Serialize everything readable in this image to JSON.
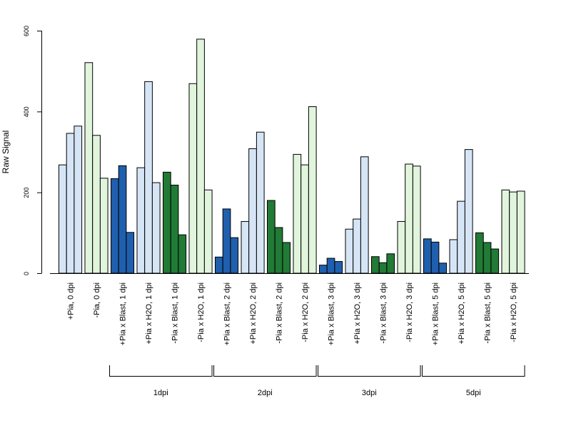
{
  "chart_data": {
    "type": "bar",
    "ylabel": "Raw Signal",
    "ylim": [
      0,
      600
    ],
    "yticks": [
      0,
      200,
      400,
      600
    ],
    "grid": false,
    "legend": "none",
    "colors": {
      "light_blue": "#d6e5f6",
      "light_green": "#e1f5dc",
      "dark_blue": "#1f5fae",
      "dark_green": "#217a35",
      "outline": "#000000"
    },
    "categories": [
      "+Pia, 0 dpi",
      "-Pia, 0 dpi",
      "+Pia x Blast, 1 dpi",
      "+Pia x H2O, 1 dpi",
      "-Pia x Blast, 1 dpi",
      "-Pia x H2O, 1 dpi",
      "+Pia x Blast, 2 dpi",
      "+Pia x H2O, 2 dpi",
      "-Pia x Blast, 2 dpi",
      "-Pia x H2O, 2 dpi",
      "+Pia x Blast, 3 dpi",
      "+Pia x H2O, 3 dpi",
      "-Pia x Blast, 3 dpi",
      "-Pia x H2O, 3 dpi",
      "+Pia x Blast, 5 dpi",
      "+Pia x H2O, 5 dpi",
      "-Pia x Blast, 5 dpi",
      "-Pia x H2O, 5 dpi"
    ],
    "group_colors": [
      "light_blue",
      "light_green",
      "dark_blue",
      "light_blue",
      "dark_green",
      "light_green",
      "dark_blue",
      "light_blue",
      "dark_green",
      "light_green",
      "dark_blue",
      "light_blue",
      "dark_green",
      "light_green",
      "dark_blue",
      "light_blue",
      "dark_green",
      "light_green"
    ],
    "values": [
      [
        268,
        346,
        364
      ],
      [
        521,
        341,
        235
      ],
      [
        234,
        266,
        101
      ],
      [
        261,
        474,
        224
      ],
      [
        250,
        218,
        95
      ],
      [
        469,
        579,
        206
      ],
      [
        40,
        159,
        88
      ],
      [
        128,
        308,
        349
      ],
      [
        180,
        113,
        76
      ],
      [
        294,
        268,
        412
      ],
      [
        20,
        37,
        29
      ],
      [
        109,
        134,
        288
      ],
      [
        41,
        26,
        48
      ],
      [
        128,
        270,
        265
      ],
      [
        85,
        77,
        25
      ],
      [
        83,
        178,
        306
      ],
      [
        100,
        76,
        60
      ],
      [
        206,
        201,
        203
      ]
    ],
    "time_brackets": [
      {
        "label": "1dpi",
        "from": 2,
        "to": 5
      },
      {
        "label": "2dpi",
        "from": 6,
        "to": 9
      },
      {
        "label": "3dpi",
        "from": 10,
        "to": 13
      },
      {
        "label": "5dpi",
        "from": 14,
        "to": 17
      }
    ]
  }
}
